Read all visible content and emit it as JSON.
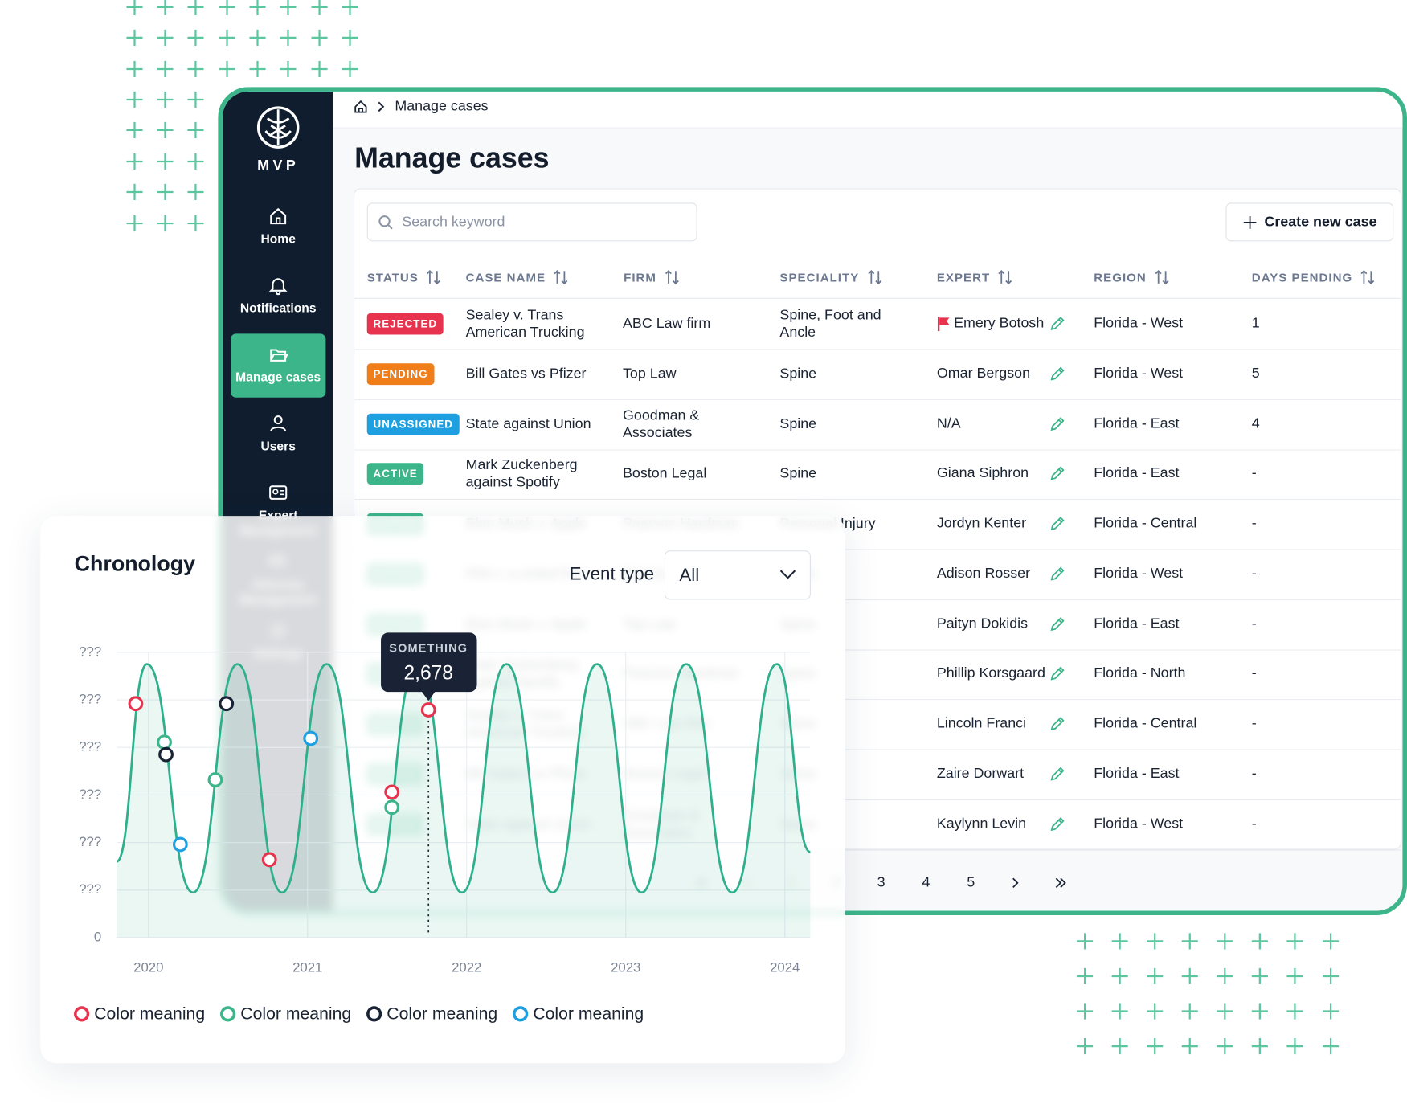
{
  "app": {
    "brand": "MVP",
    "nav": [
      "Home",
      "Notifications",
      "Manage cases",
      "Users",
      "Expert Management",
      "Attorney Management",
      "Settings"
    ],
    "nav_active": 2,
    "breadcrumb": "Manage cases",
    "title": "Manage cases",
    "search_placeholder": "Search keyword",
    "create_button": "Create new case",
    "table": {
      "columns": [
        "STATUS",
        "CASE NAME",
        "FIRM",
        "SPECIALITY",
        "EXPERT",
        "REGION",
        "DAYS PENDING"
      ],
      "rows": [
        {
          "status": "REJECTED",
          "status_color": "#e8334f",
          "case": "Sealey v. Trans American Trucking",
          "firm": "ABC Law firm",
          "speciality": "Spine, Foot and Ancle",
          "expert": "Emery Botosh",
          "flagged": true,
          "region": "Florida - West",
          "days": "1"
        },
        {
          "status": "PENDING",
          "status_color": "#ef7d1a",
          "case": "Bill Gates vs Pfizer",
          "firm": "Top Law",
          "speciality": "Spine",
          "expert": "Omar Bergson",
          "flagged": false,
          "region": "Florida - West",
          "days": "5"
        },
        {
          "status": "UNASSIGNED",
          "status_color": "#1e9fe0",
          "case": "State against Union",
          "firm": "Goodman & Associates",
          "speciality": "Spine",
          "expert": "N/A",
          "flagged": false,
          "region": "Florida - East",
          "days": "4"
        },
        {
          "status": "ACTIVE",
          "status_color": "#3cb58a",
          "case": "Mark Zuckenberg against Spotify",
          "firm": "Boston Legal",
          "speciality": "Spine",
          "expert": "Giana Siphron",
          "flagged": false,
          "region": "Florida - East",
          "days": "-"
        },
        {
          "status": "ACTIVE",
          "status_color": "#3cb58a",
          "case": "Elon Musk v. Apple",
          "firm": "Pearson Hardman",
          "speciality": "Personal Injury",
          "expert": "Jordyn Kenter",
          "flagged": false,
          "region": "Florida - Central",
          "days": "-"
        },
        {
          "status": "ACTIVE",
          "status_color": "#3cb58a",
          "case": "Phil v. a united firm",
          "firm": "Boston Legal",
          "speciality": "Spine",
          "expert": "Adison Rosser",
          "flagged": false,
          "region": "Florida - West",
          "days": "-"
        },
        {
          "status": "ACTIVE",
          "status_color": "#3cb58a",
          "case": "Elon Musk v. Apple",
          "firm": "Top Law",
          "speciality": "Spine",
          "expert": "Paityn Dokidis",
          "flagged": false,
          "region": "Florida - East",
          "days": "-"
        },
        {
          "status": "ACTIVE",
          "status_color": "#3cb58a",
          "case": "Mark Zuckenberg against Spotify",
          "firm": "Pearson Hardman",
          "speciality": "Spine",
          "expert": "Phillip Korsgaard",
          "flagged": false,
          "region": "Florida - North",
          "days": "-"
        },
        {
          "status": "ACTIVE",
          "status_color": "#3cb58a",
          "case": "Sealey v. Trans American Trucking",
          "firm": "ABC Law firm",
          "speciality": "Spine",
          "expert": "Lincoln Franci",
          "flagged": false,
          "region": "Florida - Central",
          "days": "-"
        },
        {
          "status": "ACTIVE",
          "status_color": "#3cb58a",
          "case": "Bill Gates vs Pfizer",
          "firm": "Boston Legal",
          "speciality": "Spine",
          "expert": "Zaire Dorwart",
          "flagged": false,
          "region": "Florida - East",
          "days": "-"
        },
        {
          "status": "ACTIVE",
          "status_color": "#3cb58a",
          "case": "State against Union",
          "firm": "Goodman & Associates",
          "speciality": "Spine",
          "expert": "Kaylynn Levin",
          "flagged": false,
          "region": "Florida - West",
          "days": "-"
        }
      ]
    },
    "pages": [
      1,
      2,
      3,
      4,
      5
    ]
  },
  "chronology": {
    "title": "Chronology",
    "filter_label": "Event type",
    "filter_value": "All",
    "chart": {
      "type": "line",
      "xlim": [
        2019.8,
        2024.16
      ],
      "xticks": [
        2020,
        2021,
        2022,
        2023,
        2024
      ],
      "ylim": [
        0,
        6
      ],
      "yticks": [
        0,
        {
          "value": 1,
          "label": "???"
        },
        {
          "value": 2,
          "label": "???"
        },
        {
          "value": 3,
          "label": "???"
        },
        {
          "value": 4,
          "label": "???"
        },
        {
          "value": 5,
          "label": "???"
        },
        {
          "value": 6,
          "label": "???"
        }
      ],
      "grid": true,
      "line": {
        "color": "#2fb08c",
        "x": [
          2019.8,
          2019.99,
          2020.28,
          2020.56,
          2020.84,
          2021.12,
          2021.41,
          2021.69,
          2021.97,
          2022.25,
          2022.54,
          2022.82,
          2023.1,
          2023.38,
          2023.67,
          2023.95,
          2024.16
        ],
        "values": [
          1.6,
          5.75,
          0.95,
          5.75,
          0.95,
          5.75,
          0.95,
          5.75,
          0.95,
          5.75,
          0.95,
          5.75,
          0.95,
          5.75,
          0.95,
          5.75,
          1.8
        ]
      },
      "series": [
        {
          "name": "Color meaning",
          "color": "#e8334f",
          "x": [
            2019.92,
            2020.76,
            2021.53,
            2021.76
          ],
          "values": [
            4.92,
            1.64,
            3.06,
            4.79
          ]
        },
        {
          "name": "Color meaning",
          "color": "#3cb58a",
          "x": [
            2020.1,
            2020.42,
            2021.53
          ],
          "values": [
            4.11,
            3.32,
            2.74
          ]
        },
        {
          "name": "Color meaning",
          "color": "#1a2335",
          "x": [
            2020.11,
            2020.49
          ],
          "values": [
            3.85,
            4.92
          ]
        },
        {
          "name": "Color meaning",
          "color": "#1e9fe0",
          "x": [
            2020.2,
            2021.02
          ],
          "values": [
            1.96,
            4.19
          ]
        }
      ],
      "tooltip": {
        "title": "SOMETHING",
        "text": "2,678",
        "series": 0,
        "index": 3
      }
    }
  }
}
